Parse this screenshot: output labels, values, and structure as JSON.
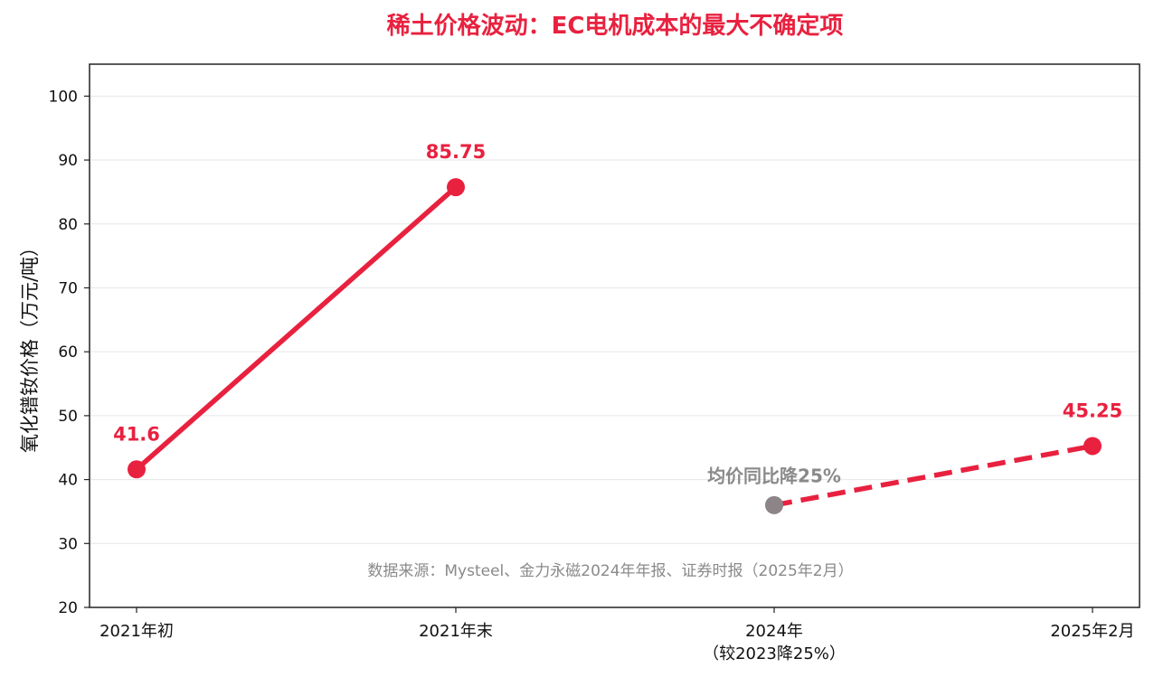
{
  "chart_data": {
    "type": "line",
    "title": "稀土价格波动：EC电机成本的最大不确定项",
    "ylabel": "氧化镨钕价格（万元/吨）",
    "xlabel": "",
    "ylim": [
      20,
      105
    ],
    "yticks": [
      20,
      30,
      40,
      50,
      60,
      70,
      80,
      90,
      100
    ],
    "grid": true,
    "categories": [
      "2021年初",
      "2021年末",
      "2024年",
      "2025年2月"
    ],
    "category_sublabels": [
      "",
      "",
      "（较2023降25%）",
      ""
    ],
    "series": [
      {
        "style": "solid",
        "x": [
          "2021年初",
          "2021年末"
        ],
        "values": [
          41.6,
          85.75
        ],
        "labels": [
          "41.6",
          "85.75"
        ]
      },
      {
        "style": "dashed",
        "x": [
          "2024年",
          "2025年2月"
        ],
        "values": [
          36,
          45.25
        ],
        "labels": [
          "",
          "45.25"
        ]
      }
    ],
    "annotations": [
      {
        "text": "均价同比降25%",
        "x": "2024年",
        "y": 40.6
      }
    ],
    "source": "数据来源：Mysteel、金力永磁2024年年报、证券时报（2025年2月）"
  },
  "colors": {
    "accent": "#e8213f",
    "gray_point": "#8c8486",
    "note_text": "#8a8a8a",
    "grid": "#e6e6e6",
    "axis": "#222222"
  }
}
